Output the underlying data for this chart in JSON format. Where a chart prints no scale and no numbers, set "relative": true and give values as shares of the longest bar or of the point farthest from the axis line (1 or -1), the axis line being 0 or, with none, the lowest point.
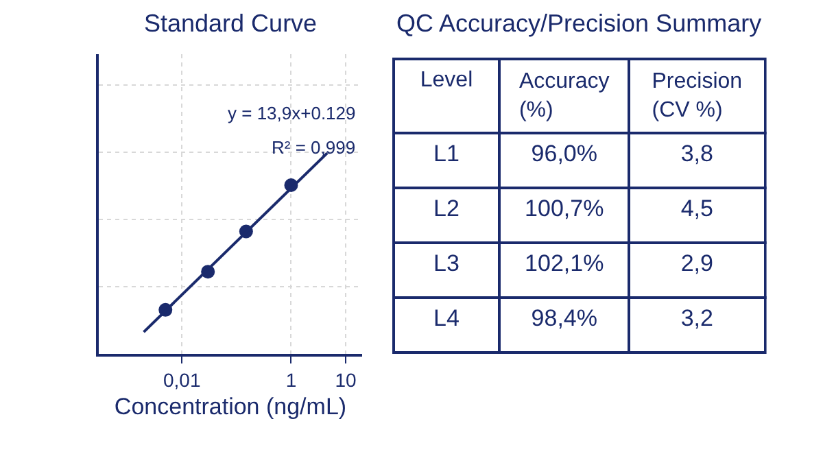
{
  "chart_data": [
    {
      "type": "scatter",
      "title": "Standard Curve",
      "xlabel": "Concentration (ng/mL)",
      "relative": true,
      "log": "x",
      "grid": true,
      "tick_labels": "x",
      "xlim": [
        0.0003,
        20
      ],
      "xticks": [
        {
          "value": 0.01,
          "label": "0,01"
        },
        1,
        10
      ],
      "series": [
        {
          "type": "scatter",
          "marker": "circle",
          "color": "#1a2a6c",
          "x": [
            0.005,
            0.03,
            0.15,
            1
          ],
          "values": [
            0.22,
            0.41,
            0.61,
            0.84
          ]
        },
        {
          "type": "line",
          "marker": "none",
          "color": "#1a2a6c",
          "x": [
            0.002,
            4.6
          ],
          "values": [
            0.11,
            1.0
          ]
        }
      ],
      "annotations": [
        "y = 13,9x+0.129",
        "R² = 0,999"
      ]
    },
    {
      "type": "other",
      "title": "QC Accuracy/Precision Summary",
      "categories": [
        "Level",
        "Accuracy (%)",
        "Precision (CV %)"
      ],
      "y_categories": [
        "L1",
        "L2",
        "L3",
        "L4"
      ],
      "cell_labels": [
        [
          "96,0%",
          "3,8"
        ],
        [
          "100,7%",
          "4,5"
        ],
        [
          "102,1%",
          "2,9"
        ],
        [
          "98,4%",
          "3,2"
        ]
      ]
    }
  ]
}
